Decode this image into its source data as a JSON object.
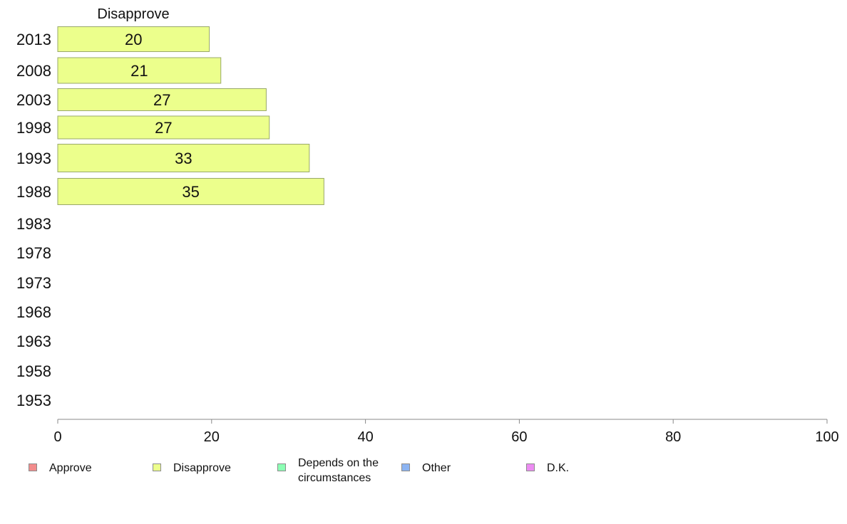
{
  "chart_data": {
    "type": "bar",
    "orientation": "horizontal",
    "panel_title": "Disapprove",
    "categories": [
      "2013",
      "2008",
      "2003",
      "1998",
      "1993",
      "1988",
      "1983",
      "1978",
      "1973",
      "1968",
      "1963",
      "1958",
      "1953"
    ],
    "series": [
      {
        "name": "Disapprove",
        "color": "#ecff8c",
        "values": [
          19.7,
          21.2,
          27.1,
          27.5,
          32.7,
          34.6,
          null,
          null,
          null,
          null,
          null,
          null,
          null
        ],
        "labels": [
          "20",
          "21",
          "27",
          "27",
          "33",
          "35",
          null,
          null,
          null,
          null,
          null,
          null,
          null
        ]
      }
    ],
    "xlim": [
      0,
      100
    ],
    "xticks": [
      0,
      20,
      40,
      60,
      80,
      100
    ],
    "xtick_labels": [
      "0",
      "20",
      "40",
      "60",
      "80",
      "100"
    ],
    "grid": false,
    "legend_placement": "bottom",
    "legend": [
      {
        "label": "Approve",
        "color": "#f28c8c"
      },
      {
        "label": "Disapprove",
        "color": "#ecff8c"
      },
      {
        "label": "Depends on the\ncircumstances",
        "color": "#8cffb4"
      },
      {
        "label": "Other",
        "color": "#8cb4f2"
      },
      {
        "label": "D.K.",
        "color": "#ec8cf2"
      }
    ],
    "bar_stroke": "#9aa86a",
    "axis_color": "#888888"
  }
}
